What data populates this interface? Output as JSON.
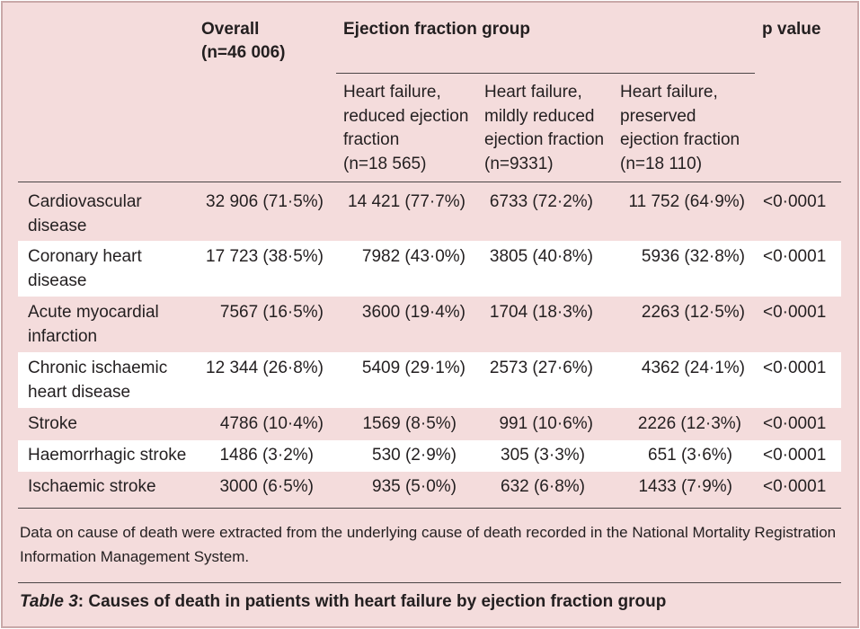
{
  "header": {
    "overall": "Overall\n(n=46 006)",
    "group": "Ejection fraction group",
    "pvalue": "p value",
    "subs": [
      "Heart failure,\nreduced ejection\nfraction\n(n=18 565)",
      "Heart failure,\nmildly reduced\nejection fraction\n(n=9331)",
      "Heart failure,\npreserved\nejection fraction\n(n=18 110)"
    ]
  },
  "rows": [
    {
      "label": "Cardiovascular\ndisease",
      "overall": "32 906 (71·5%)",
      "reduced": "14 421 (77·7%)",
      "mildly": "6733 (72·2%)",
      "preserved": "11 752 (64·9%)",
      "p": "<0·0001"
    },
    {
      "label": "Coronary heart\ndisease",
      "overall": "17 723 (38·5%)",
      "reduced": "7982 (43·0%)",
      "mildly": "3805 (40·8%)",
      "preserved": "5936 (32·8%)",
      "p": "<0·0001"
    },
    {
      "label": "Acute myocardial\ninfarction",
      "overall": "7567 (16·5%)",
      "reduced": "3600 (19·4%)",
      "mildly": "1704 (18·3%)",
      "preserved": "2263 (12·5%)",
      "p": "<0·0001"
    },
    {
      "label": "Chronic ischaemic\nheart disease",
      "overall": "12 344 (26·8%)",
      "reduced": "5409 (29·1%)",
      "mildly": "2573 (27·6%)",
      "preserved": "4362 (24·1%)",
      "p": "<0·0001"
    },
    {
      "label": "Stroke",
      "overall": "4786 (10·4%)",
      "reduced": "1569 (8·5%)",
      "mildly": "991 (10·6%)",
      "preserved": "2226 (12·3%)",
      "p": "<0·0001"
    },
    {
      "label": "Haemorrhagic stroke",
      "overall": "1486 (3·2%)",
      "reduced": "530 (2·9%)",
      "mildly": "305 (3·3%)",
      "preserved": "651 (3·6%)",
      "p": "<0·0001"
    },
    {
      "label": "Ischaemic stroke",
      "overall": "3000 (6·5%)",
      "reduced": "935 (5·0%)",
      "mildly": "632 (6·8%)",
      "preserved": "1433 (7·9%)",
      "p": "<0·0001"
    }
  ],
  "footnote": "Data on cause of death were extracted from the underlying cause of death recorded in the National Mortality Registration Information Management System.",
  "caption": {
    "label": "Table 3",
    "title": ": Causes of death in patients with heart failure by ejection fraction group"
  }
}
